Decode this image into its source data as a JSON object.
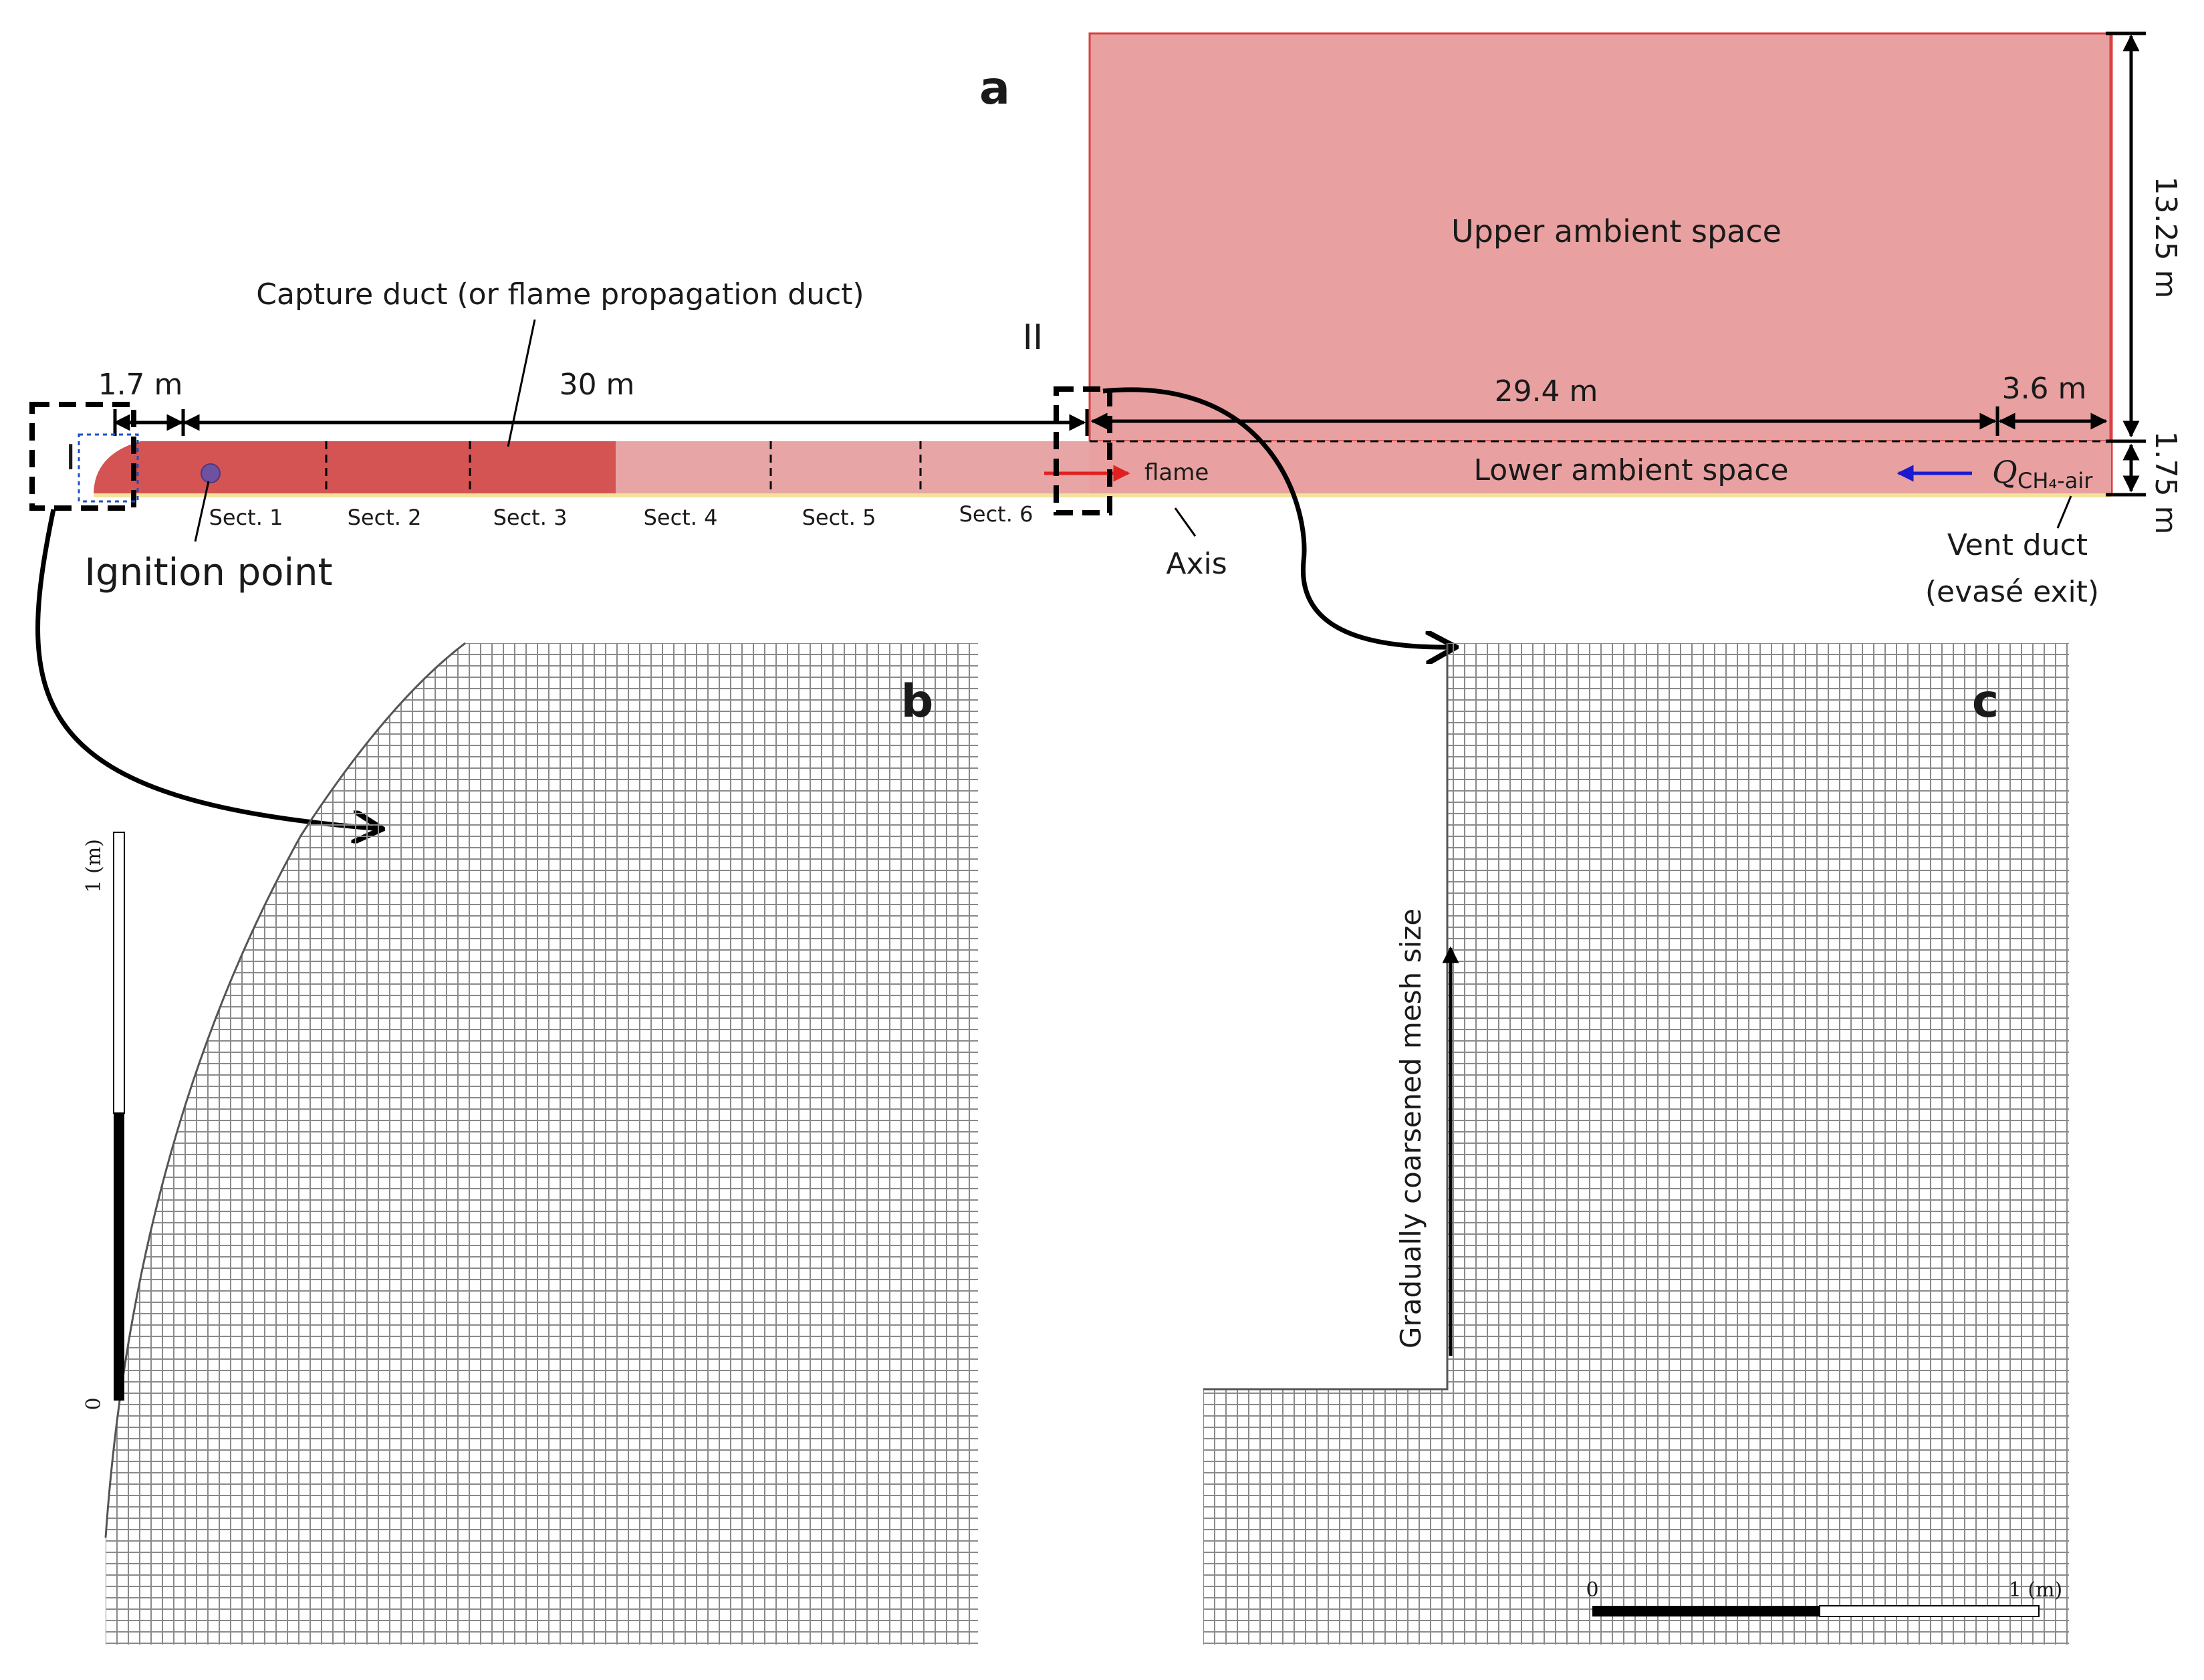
{
  "panels": {
    "a": "a",
    "b": "b",
    "c": "c"
  },
  "colors": {
    "ambient": "#e8a0a0",
    "ambient_edge": "#d94040",
    "duct_dark": "#d45454",
    "duct_light": "#e8a5a5",
    "floor": "#f3e29a",
    "flame_arrow": "#e02020",
    "gas_arrow": "#1a1ad0",
    "ignition": "#7050a0"
  },
  "labels": {
    "upper_space": "Upper ambient space",
    "lower_space": "Lower ambient space",
    "capture_duct": "Capture duct (or flame propagation duct)",
    "ignition": "Ignition point",
    "flame": "flame",
    "axis": "Axis",
    "vent_duct_1": "Vent duct",
    "vent_duct_2": "(evasé exit)",
    "q_main": "Q",
    "q_sub": "CH₄-air",
    "region_1": "I",
    "region_2": "II",
    "mesh_note": "Gradually coarsened mesh size"
  },
  "dimensions": {
    "d1": "1.7 m",
    "d2": "30 m",
    "d3": "29.4 m",
    "d4": "3.6 m",
    "height_upper": "13.25 m",
    "height_lower": "1.75 m"
  },
  "sections": [
    "Sect. 1",
    "Sect. 2",
    "Sect. 3",
    "Sect. 4",
    "Sect. 5",
    "Sect. 6"
  ],
  "scale_b": {
    "zero": "0",
    "one": "1 (m)"
  },
  "scale_c": {
    "zero": "0",
    "one": "1 (m)"
  }
}
